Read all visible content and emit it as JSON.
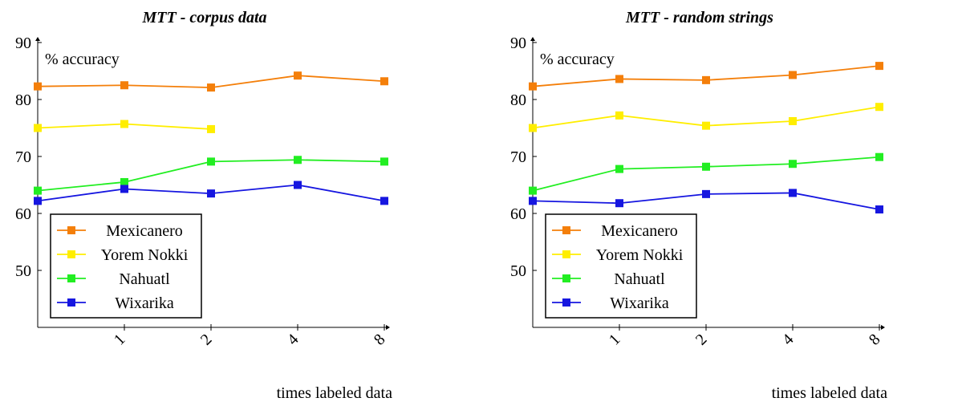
{
  "chart_data": [
    {
      "type": "line",
      "title": "MTT - corpus data",
      "xlabel": "times labeled data",
      "ylabel": "% accuracy",
      "categories": [
        "",
        "1",
        "2",
        "4",
        "8"
      ],
      "yticks": [
        "50",
        "60",
        "70",
        "80",
        "90"
      ],
      "ylim": [
        40,
        90
      ],
      "grid": false,
      "legend_position": "bottom-left",
      "series": [
        {
          "name": "Mexicanero",
          "color": "#f47f0a",
          "values": [
            82.3,
            82.5,
            82.1,
            84.2,
            83.2
          ]
        },
        {
          "name": "Yorem Nokki",
          "color": "#ffee00",
          "values": [
            75.0,
            75.7,
            74.8,
            null,
            null
          ]
        },
        {
          "name": "Nahuatl",
          "color": "#22ee22",
          "values": [
            64.0,
            65.5,
            69.1,
            69.4,
            69.1
          ]
        },
        {
          "name": "Wixarika",
          "color": "#1616e0",
          "values": [
            62.2,
            64.3,
            63.5,
            65.0,
            62.2
          ]
        }
      ]
    },
    {
      "type": "line",
      "title": "MTT - random strings",
      "xlabel": "times labeled data",
      "ylabel": "% accuracy",
      "categories": [
        "",
        "1",
        "2",
        "4",
        "8"
      ],
      "yticks": [
        "50",
        "60",
        "70",
        "80",
        "90"
      ],
      "ylim": [
        40,
        90
      ],
      "grid": false,
      "legend_position": "bottom-left",
      "series": [
        {
          "name": "Mexicanero",
          "color": "#f47f0a",
          "values": [
            82.3,
            83.6,
            83.4,
            84.3,
            85.9
          ]
        },
        {
          "name": "Yorem Nokki",
          "color": "#ffee00",
          "values": [
            75.0,
            77.2,
            75.4,
            76.2,
            78.7
          ]
        },
        {
          "name": "Nahuatl",
          "color": "#22ee22",
          "values": [
            64.0,
            67.8,
            68.2,
            68.7,
            69.9
          ]
        },
        {
          "name": "Wixarika",
          "color": "#1616e0",
          "values": [
            62.2,
            61.8,
            63.4,
            63.6,
            60.7
          ]
        }
      ]
    }
  ]
}
